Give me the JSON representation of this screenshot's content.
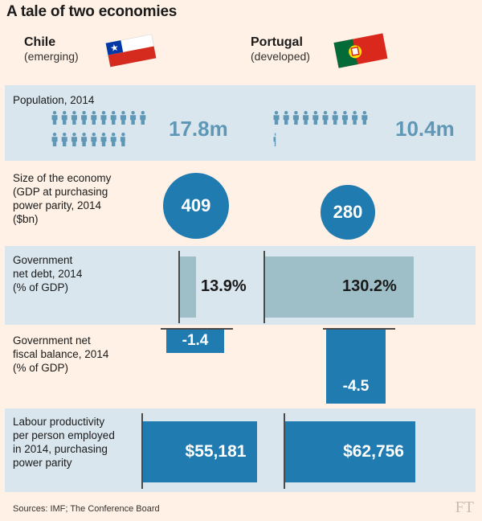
{
  "title": "A tale of two economies",
  "countries": [
    {
      "name": "Chile",
      "sub": "(emerging)"
    },
    {
      "name": "Portugal",
      "sub": "(developed)"
    }
  ],
  "sources": "Sources: IMF; The Conference Board",
  "logo": "FT",
  "colors": {
    "background": "#fff1e5",
    "panel": "#d9e6ee",
    "blue": "#1f7bb0",
    "grey_bar": "#9ebfc7",
    "light_blue_text": "#5f97b6"
  },
  "chart_data": [
    {
      "type": "pictogram",
      "label": "Population, 2014",
      "unit": "m",
      "values": [
        17.8,
        10.4
      ],
      "display": [
        "17.8m",
        "10.4m"
      ]
    },
    {
      "type": "bubble",
      "label": "Size of the economy (GDP at purchasing power parity, 2014 ($bn)",
      "values": [
        409,
        280
      ],
      "display": [
        "409",
        "280"
      ]
    },
    {
      "type": "bar",
      "label": "Government net debt, 2014 (% of GDP)",
      "values": [
        13.9,
        130.2
      ],
      "display": [
        "13.9%",
        "130.2%"
      ]
    },
    {
      "type": "bar",
      "label": "Government net fiscal balance, 2014 (% of GDP)",
      "values": [
        -1.4,
        -4.5
      ],
      "display": [
        "-1.4",
        "-4.5"
      ]
    },
    {
      "type": "bar",
      "label": "Labour productivity per person employed in 2014, purchasing power parity",
      "values": [
        55181,
        62756
      ],
      "display": [
        "$55,181",
        "$62,756"
      ]
    }
  ],
  "row_labels": [
    [
      "Population, 2014"
    ],
    [
      "Size of the economy",
      "(GDP at purchasing",
      "power parity, 2014",
      "($bn)"
    ],
    [
      "Government",
      "net debt, 2014",
      "(% of GDP)"
    ],
    [
      "Government net",
      "fiscal balance, 2014",
      "(% of GDP)"
    ],
    [
      "Labour productivity",
      "per person employed",
      "in 2014, purchasing",
      "power parity"
    ]
  ]
}
